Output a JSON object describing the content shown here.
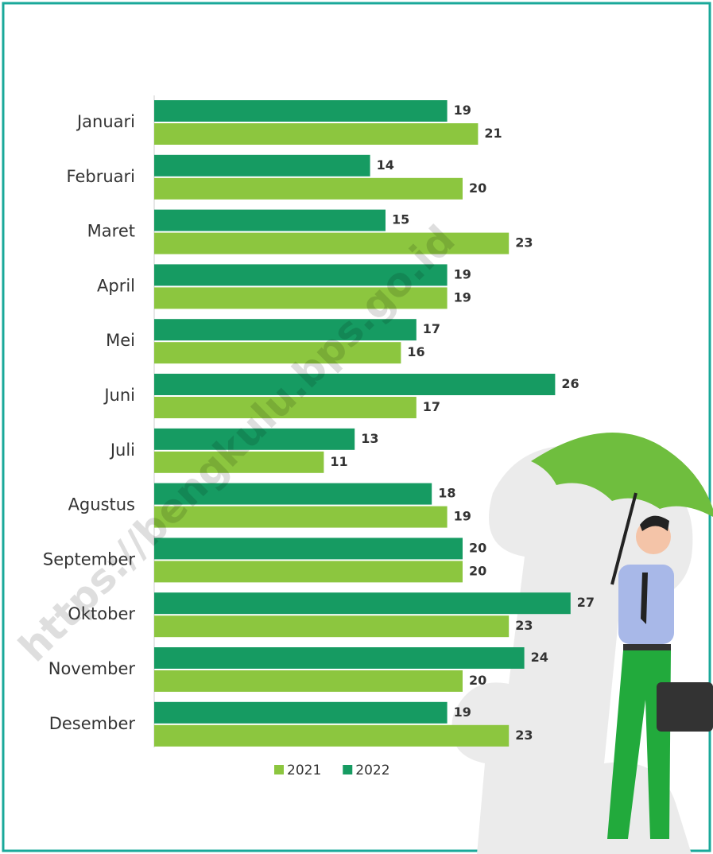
{
  "chart_data": {
    "type": "bar",
    "orientation": "horizontal",
    "categories": [
      "Januari",
      "Februari",
      "Maret",
      "April",
      "Mei",
      "Juni",
      "Juli",
      "Agustus",
      "September",
      "Oktober",
      "November",
      "Desember"
    ],
    "series": [
      {
        "name": "2021",
        "color": "#8cc63f",
        "values": [
          21,
          20,
          23,
          19,
          16,
          17,
          11,
          19,
          20,
          23,
          20,
          23
        ]
      },
      {
        "name": "2022",
        "color": "#169b62",
        "values": [
          19,
          14,
          15,
          19,
          17,
          26,
          13,
          18,
          20,
          27,
          24,
          19
        ]
      }
    ],
    "watermark": "https://bengkulu.bps.go.id",
    "legend": "bottom"
  }
}
